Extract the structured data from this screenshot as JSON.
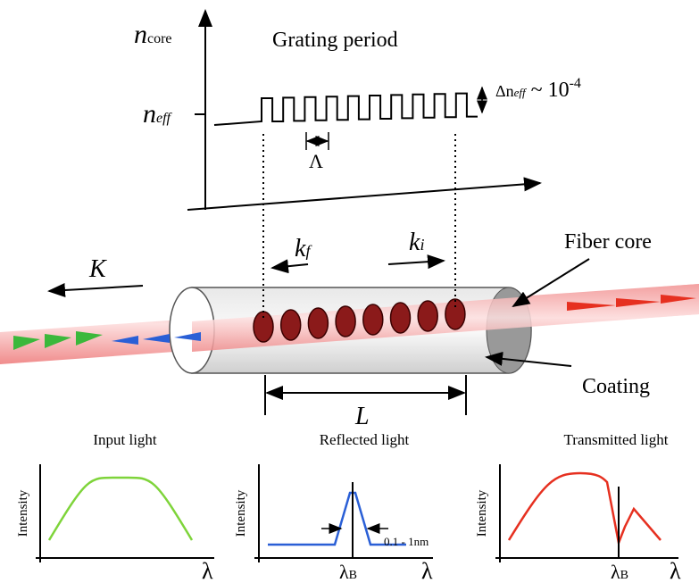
{
  "grating_profile": {
    "n_core": {
      "symbol": "n",
      "subscript": "core"
    },
    "title": "Grating period",
    "n_eff": {
      "symbol": "n",
      "subscript": "eff"
    },
    "index_change": {
      "prefix": "Δn",
      "subscript": "eff",
      "middle": " ~ 10",
      "superscript": "-4"
    },
    "period": "Λ"
  },
  "fiber": {
    "k_f": {
      "symbol": "k",
      "subscript": "f"
    },
    "k_i": {
      "symbol": "k",
      "subscript": "i"
    },
    "K": "K",
    "core_label": "Fiber core",
    "coating_label": "Coating",
    "length": "L"
  },
  "plots": [
    {
      "title": "Input light",
      "y_label": "Intensity",
      "x_label": "λ"
    },
    {
      "title": "Reflected light",
      "y_label": "Intensity",
      "x_label": "λ",
      "marker": {
        "symbol": "λ",
        "subscript": "B"
      },
      "width_note": "0.1 - 1nm"
    },
    {
      "title": "Transmitted light",
      "y_label": "Intensity",
      "x_label": "λ",
      "marker": {
        "symbol": "λ",
        "subscript": "B"
      }
    }
  ]
}
